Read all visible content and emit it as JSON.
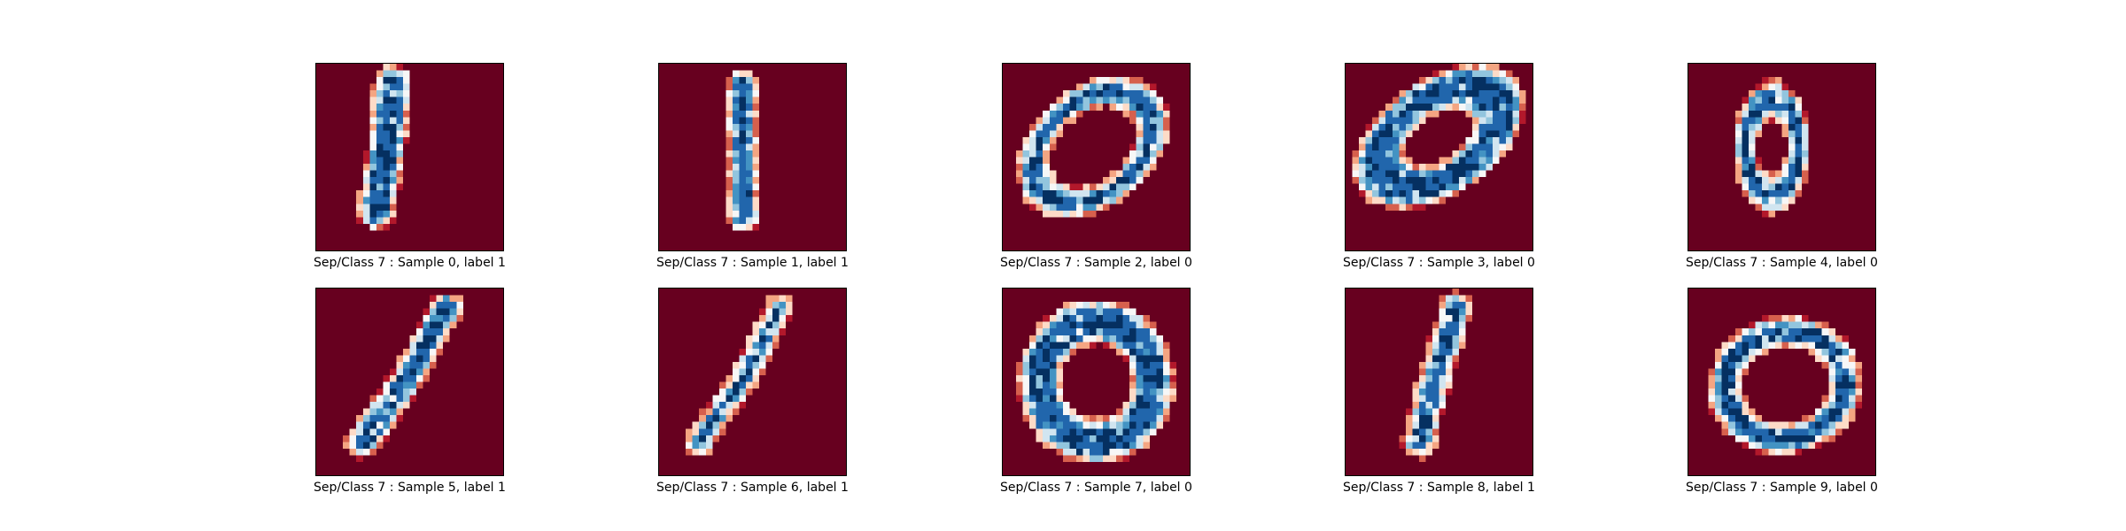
{
  "figure": {
    "colormap": "RdBu",
    "colormap_stops": [
      "#67001f",
      "#b2182b",
      "#d6604d",
      "#f4a582",
      "#fddbc7",
      "#f7f7f7",
      "#d1e5f0",
      "#92c5de",
      "#4393c3",
      "#2166ac",
      "#053061"
    ],
    "background_color": "#67001f"
  },
  "chart_data": [
    {
      "type": "heatmap",
      "title": "Sep/Class 7 : Sample 0, label 1",
      "sample": 0,
      "label": 1,
      "digit_shape": "one"
    },
    {
      "type": "heatmap",
      "title": "Sep/Class 7 : Sample 1, label 1",
      "sample": 1,
      "label": 1,
      "digit_shape": "one"
    },
    {
      "type": "heatmap",
      "title": "Sep/Class 7 : Sample 2, label 0",
      "sample": 2,
      "label": 0,
      "digit_shape": "zero"
    },
    {
      "type": "heatmap",
      "title": "Sep/Class 7 : Sample 3, label 0",
      "sample": 3,
      "label": 0,
      "digit_shape": "zero"
    },
    {
      "type": "heatmap",
      "title": "Sep/Class 7 : Sample 4, label 0",
      "sample": 4,
      "label": 0,
      "digit_shape": "zero"
    },
    {
      "type": "heatmap",
      "title": "Sep/Class 7 : Sample 5, label 1",
      "sample": 5,
      "label": 1,
      "digit_shape": "one"
    },
    {
      "type": "heatmap",
      "title": "Sep/Class 7 : Sample 6, label 1",
      "sample": 6,
      "label": 1,
      "digit_shape": "one"
    },
    {
      "type": "heatmap",
      "title": "Sep/Class 7 : Sample 7, label 0",
      "sample": 7,
      "label": 0,
      "digit_shape": "zero"
    },
    {
      "type": "heatmap",
      "title": "Sep/Class 7 : Sample 8, label 1",
      "sample": 8,
      "label": 1,
      "digit_shape": "one"
    },
    {
      "type": "heatmap",
      "title": "Sep/Class 7 : Sample 9, label 0",
      "sample": 9,
      "label": 0,
      "digit_shape": "zero"
    }
  ]
}
